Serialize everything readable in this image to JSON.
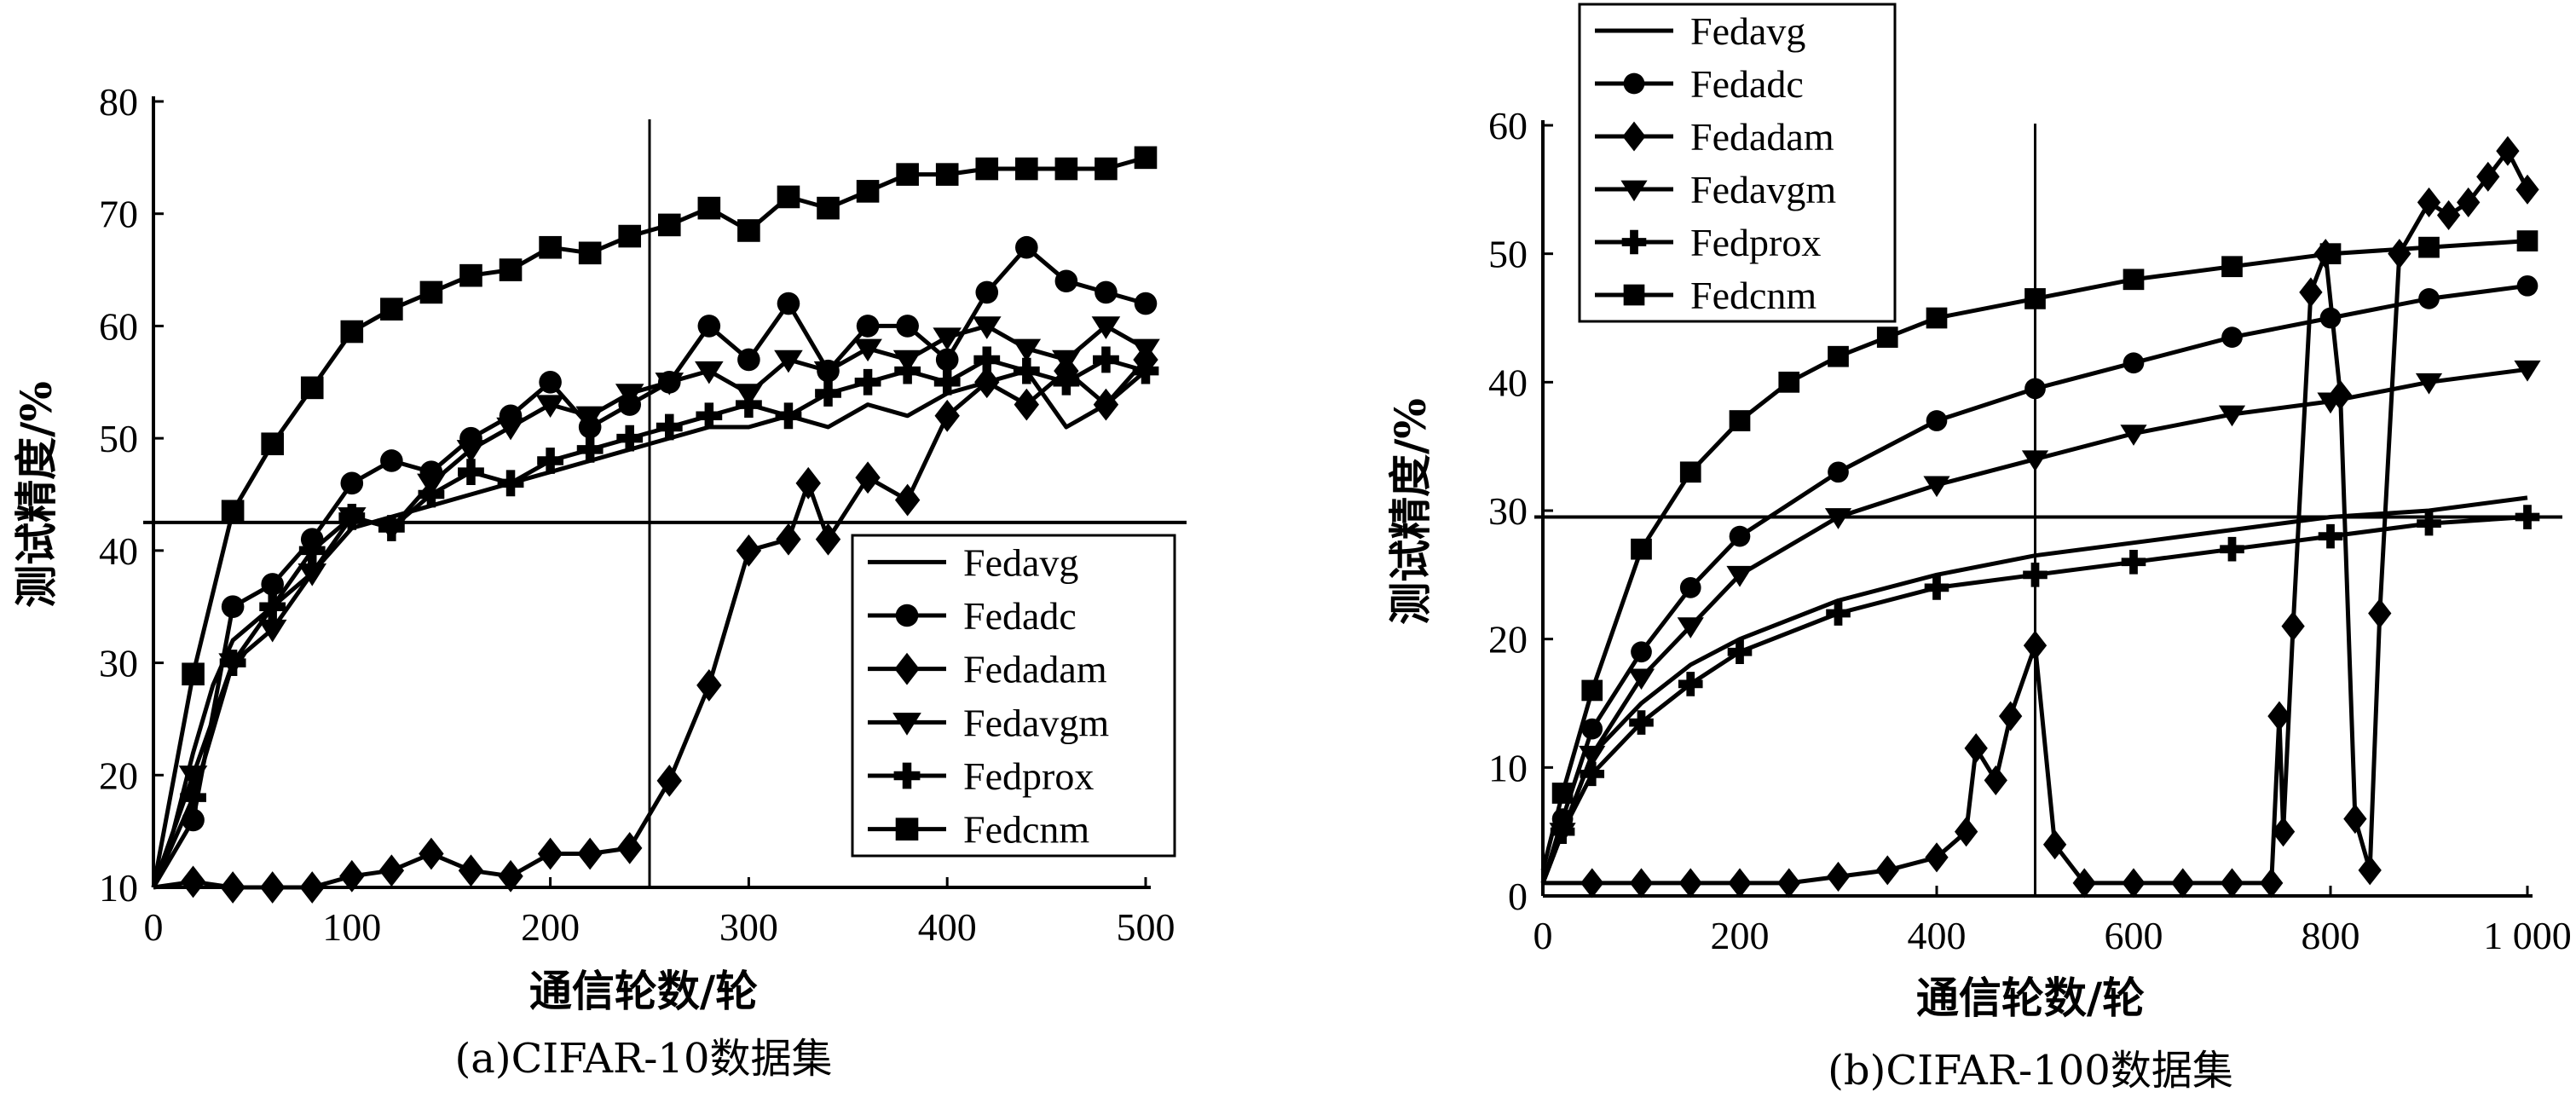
{
  "chart_data": [
    {
      "type": "line",
      "caption": "(a)CIFAR-10数据集",
      "xlabel": "通信轮数/轮",
      "ylabel": "测试精度/%",
      "xlim": [
        0,
        500
      ],
      "ylim": [
        10,
        80
      ],
      "xticks": [
        0,
        100,
        200,
        300,
        400,
        500
      ],
      "xtick_labels": [
        "0",
        "100",
        "200",
        "300",
        "400",
        "500"
      ],
      "yticks": [
        10,
        20,
        30,
        40,
        50,
        60,
        70,
        80
      ],
      "ytick_labels": [
        "10",
        "20",
        "30",
        "40",
        "50",
        "60",
        "70",
        "80"
      ],
      "reference_lines": {
        "vertical_x": 250,
        "horizontal_y": 42.5
      },
      "legend_position": "lower-right",
      "series": [
        {
          "name": "Fedavg",
          "marker": "none",
          "x": [
            0,
            10,
            20,
            30,
            40,
            60,
            80,
            100,
            120,
            140,
            160,
            180,
            200,
            220,
            240,
            260,
            280,
            300,
            320,
            340,
            360,
            380,
            400,
            420,
            440,
            460,
            480,
            500
          ],
          "y": [
            10,
            15,
            22,
            28,
            32,
            35,
            38,
            42,
            43,
            44,
            45,
            46,
            47,
            48,
            49,
            50,
            51,
            51,
            52,
            51,
            53,
            52,
            54,
            55,
            56,
            51,
            53,
            56
          ]
        },
        {
          "name": "Fedadc",
          "marker": "circle",
          "x": [
            0,
            20,
            40,
            60,
            80,
            100,
            120,
            140,
            160,
            180,
            200,
            220,
            240,
            260,
            280,
            300,
            320,
            340,
            360,
            380,
            400,
            420,
            440,
            460,
            480,
            500
          ],
          "y": [
            10,
            16,
            35,
            37,
            41,
            46,
            48,
            47,
            50,
            52,
            55,
            51,
            53,
            55,
            60,
            57,
            62,
            56,
            60,
            60,
            57,
            63,
            67,
            64,
            63,
            62
          ]
        },
        {
          "name": "Fedadam",
          "marker": "diamond",
          "x": [
            0,
            20,
            40,
            60,
            80,
            100,
            120,
            140,
            160,
            180,
            200,
            220,
            240,
            260,
            280,
            300,
            320,
            330,
            340,
            360,
            380,
            400,
            420,
            440,
            460,
            480,
            500
          ],
          "y": [
            10,
            10.5,
            10,
            10,
            10,
            11,
            11.5,
            13,
            11.5,
            11,
            13,
            13,
            13.5,
            19.5,
            28,
            40,
            41,
            46,
            41,
            46.5,
            44.5,
            52,
            55,
            53,
            56,
            53,
            57
          ]
        },
        {
          "name": "Fedavgm",
          "marker": "triangle-down",
          "x": [
            0,
            20,
            40,
            60,
            80,
            100,
            120,
            140,
            160,
            180,
            200,
            220,
            240,
            260,
            280,
            300,
            320,
            340,
            360,
            380,
            400,
            420,
            440,
            460,
            480,
            500
          ],
          "y": [
            10,
            20,
            30,
            33,
            38,
            43,
            42,
            46,
            49,
            51,
            53,
            52,
            54,
            55,
            56,
            54,
            57,
            56,
            58,
            57,
            59,
            60,
            58,
            57,
            60,
            58
          ]
        },
        {
          "name": "Fedprox",
          "marker": "cross",
          "x": [
            0,
            20,
            40,
            60,
            80,
            100,
            120,
            140,
            160,
            180,
            200,
            220,
            240,
            260,
            280,
            300,
            320,
            340,
            360,
            380,
            400,
            420,
            440,
            460,
            480,
            500
          ],
          "y": [
            10,
            18,
            30,
            35,
            40,
            43,
            42,
            45,
            47,
            46,
            48,
            49,
            50,
            51,
            52,
            53,
            52,
            54,
            55,
            56,
            55,
            57,
            56,
            55,
            57,
            56
          ]
        },
        {
          "name": "Fedcnm",
          "marker": "square",
          "x": [
            0,
            20,
            40,
            60,
            80,
            100,
            120,
            140,
            160,
            180,
            200,
            220,
            240,
            260,
            280,
            300,
            320,
            340,
            360,
            380,
            400,
            420,
            440,
            460,
            480,
            500
          ],
          "y": [
            10,
            29,
            43.5,
            49.5,
            54.5,
            59.5,
            61.5,
            63,
            64.5,
            65,
            67,
            66.5,
            68,
            69,
            70.5,
            68.5,
            71.5,
            70.5,
            72,
            73.5,
            73.5,
            74,
            74,
            74,
            74,
            75
          ]
        }
      ]
    },
    {
      "type": "line",
      "caption": "(b)CIFAR-100数据集",
      "xlabel": "通信轮数/轮",
      "ylabel": "测试精度/%",
      "xlim": [
        0,
        1000
      ],
      "ylim": [
        0,
        60
      ],
      "xticks": [
        0,
        200,
        400,
        600,
        800,
        1000
      ],
      "xtick_labels": [
        "0",
        "200",
        "400",
        "600",
        "800",
        "1 000"
      ],
      "yticks": [
        0,
        10,
        20,
        30,
        40,
        50,
        60
      ],
      "ytick_labels": [
        "0",
        "10",
        "20",
        "30",
        "40",
        "50",
        "60"
      ],
      "reference_lines": {
        "vertical_x": 500,
        "horizontal_y": 29.5
      },
      "legend_position": "top-left",
      "series": [
        {
          "name": "Fedavg",
          "marker": "none",
          "x": [
            0,
            20,
            50,
            100,
            150,
            200,
            300,
            400,
            500,
            600,
            700,
            800,
            900,
            1000
          ],
          "y": [
            1,
            5,
            11,
            15,
            18,
            20,
            23,
            25,
            26.5,
            27.5,
            28.5,
            29.5,
            30,
            31
          ]
        },
        {
          "name": "Fedadc",
          "marker": "circle",
          "x": [
            0,
            20,
            50,
            100,
            150,
            200,
            300,
            400,
            500,
            600,
            700,
            800,
            900,
            1000
          ],
          "y": [
            1,
            6,
            13,
            19,
            24,
            28,
            33,
            37,
            39.5,
            41.5,
            43.5,
            45,
            46.5,
            47.5
          ]
        },
        {
          "name": "Fedadam",
          "marker": "diamond",
          "x": [
            0,
            50,
            100,
            150,
            200,
            250,
            300,
            350,
            400,
            430,
            440,
            460,
            475,
            500,
            520,
            550,
            600,
            650,
            700,
            740,
            748,
            752,
            762,
            780,
            795,
            810,
            825,
            840,
            850,
            870,
            900,
            920,
            940,
            960,
            980,
            1000
          ],
          "y": [
            1,
            1,
            1,
            1,
            1,
            1,
            1.5,
            2,
            3,
            5,
            11.5,
            9,
            14,
            19.5,
            4,
            1,
            1,
            1,
            1,
            1,
            14,
            5,
            21,
            47,
            50,
            39,
            6,
            2,
            22,
            50,
            54,
            53,
            54,
            56,
            58,
            55
          ]
        },
        {
          "name": "Fedavgm",
          "marker": "triangle-down",
          "x": [
            0,
            20,
            50,
            100,
            150,
            200,
            300,
            400,
            500,
            600,
            700,
            800,
            900,
            1000
          ],
          "y": [
            1,
            5,
            11,
            17,
            21,
            25,
            29.5,
            32,
            34,
            36,
            37.5,
            38.5,
            40,
            41
          ]
        },
        {
          "name": "Fedprox",
          "marker": "cross",
          "x": [
            0,
            20,
            50,
            100,
            150,
            200,
            300,
            400,
            500,
            600,
            700,
            800,
            900,
            1000
          ],
          "y": [
            1,
            5,
            9.5,
            13.5,
            16.5,
            19,
            22,
            24,
            25,
            26,
            27,
            28,
            29,
            29.5
          ]
        },
        {
          "name": "Fedcnm",
          "marker": "square",
          "x": [
            0,
            20,
            50,
            100,
            150,
            200,
            250,
            300,
            350,
            400,
            500,
            600,
            700,
            800,
            900,
            1000
          ],
          "y": [
            2,
            8,
            16,
            27,
            33,
            37,
            40,
            42,
            43.5,
            45,
            46.5,
            48,
            49,
            50,
            50.5,
            51
          ]
        }
      ]
    }
  ]
}
